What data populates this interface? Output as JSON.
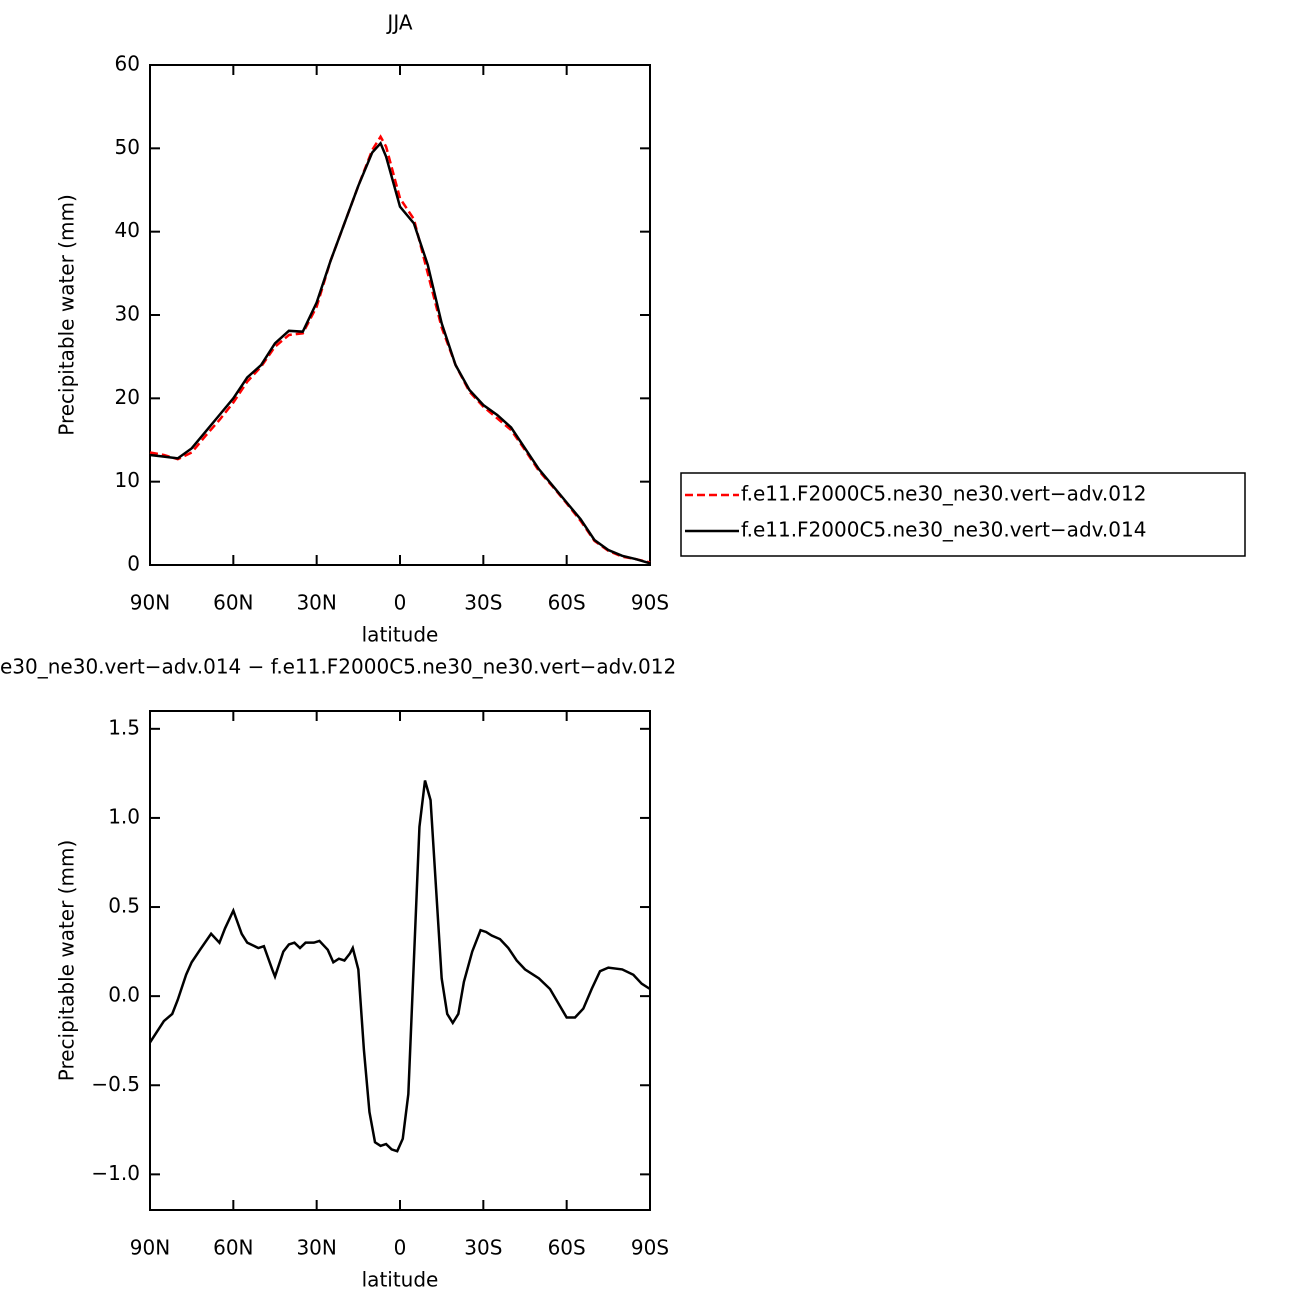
{
  "chart_data": [
    {
      "type": "line",
      "title": "JJA",
      "xlabel": "latitude",
      "ylabel": "Precipitable water (mm)",
      "x": [
        90,
        85,
        80,
        75,
        70,
        65,
        60,
        55,
        50,
        45,
        40,
        35,
        30,
        25,
        20,
        15,
        10,
        7,
        5,
        0,
        -5,
        -10,
        -15,
        -20,
        -25,
        -30,
        -35,
        -40,
        -45,
        -50,
        -55,
        -60,
        -65,
        -70,
        -75,
        -80,
        -85,
        -90
      ],
      "series": [
        {
          "name": "f.e11.F2000C5.ne30_ne30.vert−adv.012",
          "color": "#ff0000",
          "style": "dashed",
          "values": [
            13.5,
            13.2,
            12.7,
            13.5,
            15.5,
            17.4,
            19.5,
            22,
            23.8,
            26.2,
            27.6,
            27.8,
            31,
            36.5,
            41,
            45.5,
            49.8,
            51.4,
            50.2,
            44,
            41.5,
            35,
            28.5,
            24,
            20.8,
            19,
            17.6,
            16.2,
            13.8,
            11.3,
            9.4,
            7.4,
            5.3,
            2.9,
            1.7,
            1.0,
            0.7,
            0.3
          ]
        },
        {
          "name": "f.e11.F2000C5.ne30_ne30.vert−adv.014",
          "color": "#000000",
          "style": "solid",
          "values": [
            13.2,
            13.0,
            12.8,
            14,
            16,
            18,
            20,
            22.5,
            24,
            26.6,
            28.1,
            28,
            31.5,
            36.5,
            41,
            45.5,
            49.5,
            50.6,
            49,
            43,
            41,
            36,
            29,
            24,
            21,
            19.2,
            18,
            16.5,
            14,
            11.5,
            9.5,
            7.5,
            5.5,
            3,
            1.8,
            1.1,
            0.7,
            0.2
          ]
        }
      ],
      "xlim": [
        90,
        -90
      ],
      "xticks": [
        {
          "value": 90,
          "label": "90N"
        },
        {
          "value": 60,
          "label": "60N"
        },
        {
          "value": 30,
          "label": "30N"
        },
        0,
        {
          "value": -30,
          "label": "30S"
        },
        {
          "value": -60,
          "label": "60S"
        },
        {
          "value": -90,
          "label": "90S"
        }
      ],
      "ylim": [
        0,
        60
      ],
      "yticks": [
        0,
        10,
        20,
        30,
        40,
        50,
        60
      ],
      "legend": "right"
    },
    {
      "type": "line",
      "title": "e30_ne30.vert−adv.014 − f.e11.F2000C5.ne30_ne30.vert−adv.012",
      "xlabel": "latitude",
      "ylabel": "Precipitable water (mm)",
      "x": [
        90,
        85,
        82,
        80,
        77,
        75,
        72,
        68,
        65,
        63,
        60,
        57,
        55,
        51,
        49,
        46,
        45,
        42,
        40,
        38,
        36,
        34,
        31,
        29,
        26,
        24,
        22,
        20,
        18,
        17,
        15,
        13,
        11,
        9,
        7,
        5,
        3,
        1,
        -1,
        -3,
        -5,
        -7,
        -9,
        -11,
        -13,
        -15,
        -17,
        -19,
        -21,
        -23,
        -26,
        -29,
        -31,
        -33,
        -36,
        -39,
        -42,
        -45,
        -50,
        -54,
        -57,
        -60,
        -63,
        -66,
        -69,
        -72,
        -75,
        -80,
        -84,
        -87,
        -90
      ],
      "series": [
        {
          "color": "#000000",
          "style": "solid",
          "values": [
            -0.26,
            -0.14,
            -0.1,
            -0.02,
            0.12,
            0.19,
            0.26,
            0.35,
            0.3,
            0.38,
            0.48,
            0.35,
            0.3,
            0.27,
            0.28,
            0.15,
            0.11,
            0.25,
            0.29,
            0.3,
            0.27,
            0.3,
            0.3,
            0.31,
            0.26,
            0.19,
            0.21,
            0.2,
            0.24,
            0.27,
            0.15,
            -0.3,
            -0.65,
            -0.82,
            -0.84,
            -0.83,
            -0.86,
            -0.87,
            -0.8,
            -0.55,
            0.2,
            0.95,
            1.21,
            1.1,
            0.6,
            0.1,
            -0.1,
            -0.15,
            -0.1,
            0.08,
            0.25,
            0.37,
            0.36,
            0.34,
            0.32,
            0.27,
            0.2,
            0.15,
            0.1,
            0.04,
            -0.04,
            -0.12,
            -0.12,
            -0.07,
            0.04,
            0.14,
            0.16,
            0.15,
            0.12,
            0.07,
            0.04
          ]
        }
      ],
      "xlim": [
        90,
        -90
      ],
      "xticks": [
        {
          "value": 90,
          "label": "90N"
        },
        {
          "value": 60,
          "label": "60N"
        },
        {
          "value": 30,
          "label": "30N"
        },
        0,
        {
          "value": -30,
          "label": "30S"
        },
        {
          "value": -60,
          "label": "60S"
        },
        {
          "value": -90,
          "label": "90S"
        }
      ],
      "ylim": [
        -1.2,
        1.6
      ],
      "yticks": [
        {
          "value": -1,
          "label": "−1.0"
        },
        {
          "value": -0.5,
          "label": "−0.5"
        },
        {
          "value": 0,
          "label": "0.0"
        },
        0.5,
        {
          "value": 1,
          "label": "1.0"
        },
        1.5
      ]
    }
  ]
}
